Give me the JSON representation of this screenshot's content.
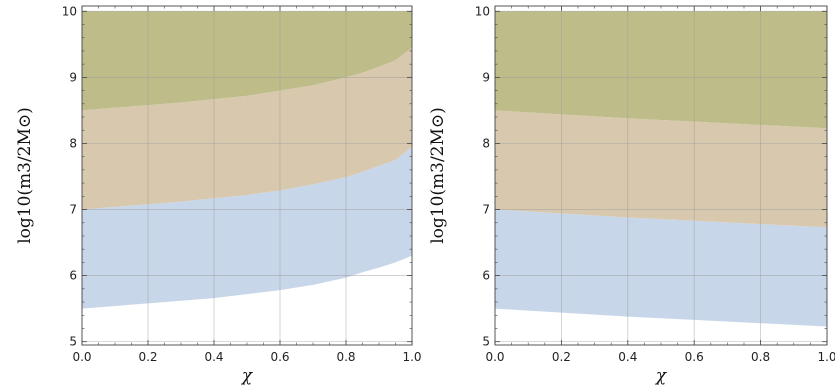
{
  "chart_data": [
    {
      "type": "area",
      "title": "",
      "xlabel": "χ",
      "ylabel": "log10(m3/2M⊙)",
      "xlim": [
        0,
        1
      ],
      "ylim": [
        4.95,
        10.08
      ],
      "x_ticks": [
        0.0,
        0.2,
        0.4,
        0.6,
        0.8,
        1.0
      ],
      "x_tick_labels": [
        "0.0",
        "0.2",
        "0.4",
        "0.6",
        "0.8",
        "1.0"
      ],
      "y_ticks": [
        5,
        6,
        7,
        8,
        9,
        10
      ],
      "y_tick_labels": [
        "5",
        "6",
        "7",
        "8",
        "9",
        "10"
      ],
      "grid": true,
      "x": [
        0,
        0.1,
        0.2,
        0.3,
        0.4,
        0.5,
        0.6,
        0.7,
        0.8,
        0.85,
        0.9,
        0.95,
        1.0
      ],
      "bands": [
        {
          "color": "#c8d6ea",
          "lower": [
            5.5,
            5.54,
            5.58,
            5.62,
            5.66,
            5.72,
            5.78,
            5.86,
            5.97,
            6.05,
            6.12,
            6.2,
            6.3
          ],
          "upper": [
            7.0,
            7.04,
            7.08,
            7.12,
            7.17,
            7.22,
            7.29,
            7.38,
            7.49,
            7.57,
            7.66,
            7.75,
            7.95
          ]
        },
        {
          "color": "#d8c9ae",
          "lower": [
            7.0,
            7.04,
            7.08,
            7.12,
            7.17,
            7.22,
            7.29,
            7.38,
            7.49,
            7.57,
            7.66,
            7.75,
            7.95
          ],
          "upper": [
            8.5,
            8.54,
            8.58,
            8.62,
            8.67,
            8.72,
            8.8,
            8.88,
            9.0,
            9.07,
            9.16,
            9.26,
            9.45
          ]
        },
        {
          "color": "#bebd8a",
          "lower": [
            8.5,
            8.54,
            8.58,
            8.62,
            8.67,
            8.72,
            8.8,
            8.88,
            9.0,
            9.07,
            9.16,
            9.26,
            9.45
          ],
          "upper": [
            10,
            10,
            10,
            10,
            10,
            10,
            10,
            10,
            10,
            10,
            10,
            10,
            10
          ]
        }
      ]
    },
    {
      "type": "area",
      "title": "",
      "xlabel": "χ",
      "ylabel": "log10(m3/2M⊙)",
      "xlim": [
        0,
        1
      ],
      "ylim": [
        4.95,
        10.08
      ],
      "x_ticks": [
        0.0,
        0.2,
        0.4,
        0.6,
        0.8,
        1.0
      ],
      "x_tick_labels": [
        "0.0",
        "0.2",
        "0.4",
        "0.6",
        "0.8",
        "1.0"
      ],
      "y_ticks": [
        5,
        6,
        7,
        8,
        9,
        10
      ],
      "y_tick_labels": [
        "5",
        "6",
        "7",
        "8",
        "9",
        "10"
      ],
      "grid": true,
      "x": [
        0,
        0.2,
        0.4,
        0.6,
        0.8,
        1.0
      ],
      "bands": [
        {
          "color": "#c8d6ea",
          "lower": [
            5.5,
            5.44,
            5.38,
            5.33,
            5.28,
            5.23
          ],
          "upper": [
            7.0,
            6.94,
            6.88,
            6.83,
            6.78,
            6.73
          ]
        },
        {
          "color": "#d8c9ae",
          "lower": [
            7.0,
            6.94,
            6.88,
            6.83,
            6.78,
            6.73
          ],
          "upper": [
            8.5,
            8.44,
            8.38,
            8.33,
            8.28,
            8.23
          ]
        },
        {
          "color": "#bebd8a",
          "lower": [
            8.5,
            8.44,
            8.38,
            8.33,
            8.28,
            8.23
          ],
          "upper": [
            10,
            10,
            10,
            10,
            10,
            10
          ]
        }
      ]
    }
  ]
}
